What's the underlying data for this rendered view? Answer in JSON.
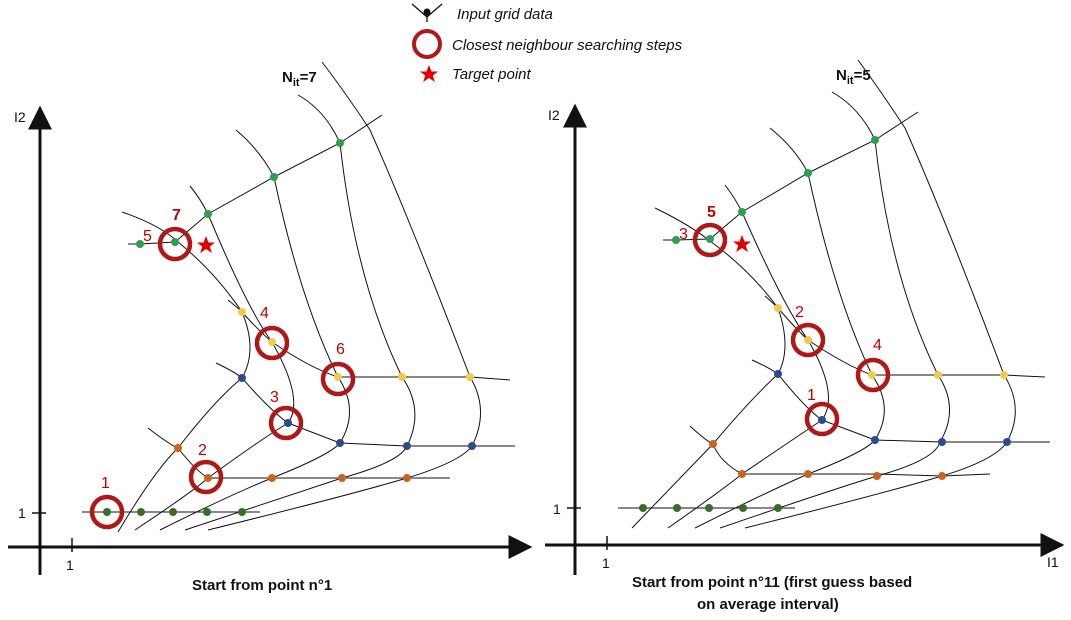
{
  "legend": {
    "grid_label": "Input grid data",
    "steps_label": "Closest neighbour searching steps",
    "target_label": "Target point"
  },
  "colors": {
    "ring": "#b01818",
    "step_number": "#c00000",
    "target": "#e00000",
    "green": "#2e9e4f",
    "yellow": "#f2c94c",
    "blue": "#2a4b8d",
    "orange": "#c8641c",
    "darkgreen": "#3a6b2a"
  },
  "left_panel": {
    "iter_label_base": "N",
    "iter_label_sub": "it",
    "iter_label_value": "=7",
    "y_axis_label": "I2",
    "x_tick": "1",
    "y_tick": "1",
    "caption": "Start from point n°1",
    "steps": [
      "1",
      "2",
      "3",
      "4",
      "5",
      "6",
      "7"
    ]
  },
  "right_panel": {
    "iter_label_base": "N",
    "iter_label_sub": "it",
    "iter_label_value": "=5",
    "y_axis_label": "I2",
    "x_axis_label": "I1",
    "x_tick": "1",
    "y_tick": "1",
    "caption_line1": "Start from point n°11 (first guess based",
    "caption_line2": "on average interval)",
    "steps": [
      "1",
      "2",
      "3",
      "4",
      "5"
    ]
  }
}
